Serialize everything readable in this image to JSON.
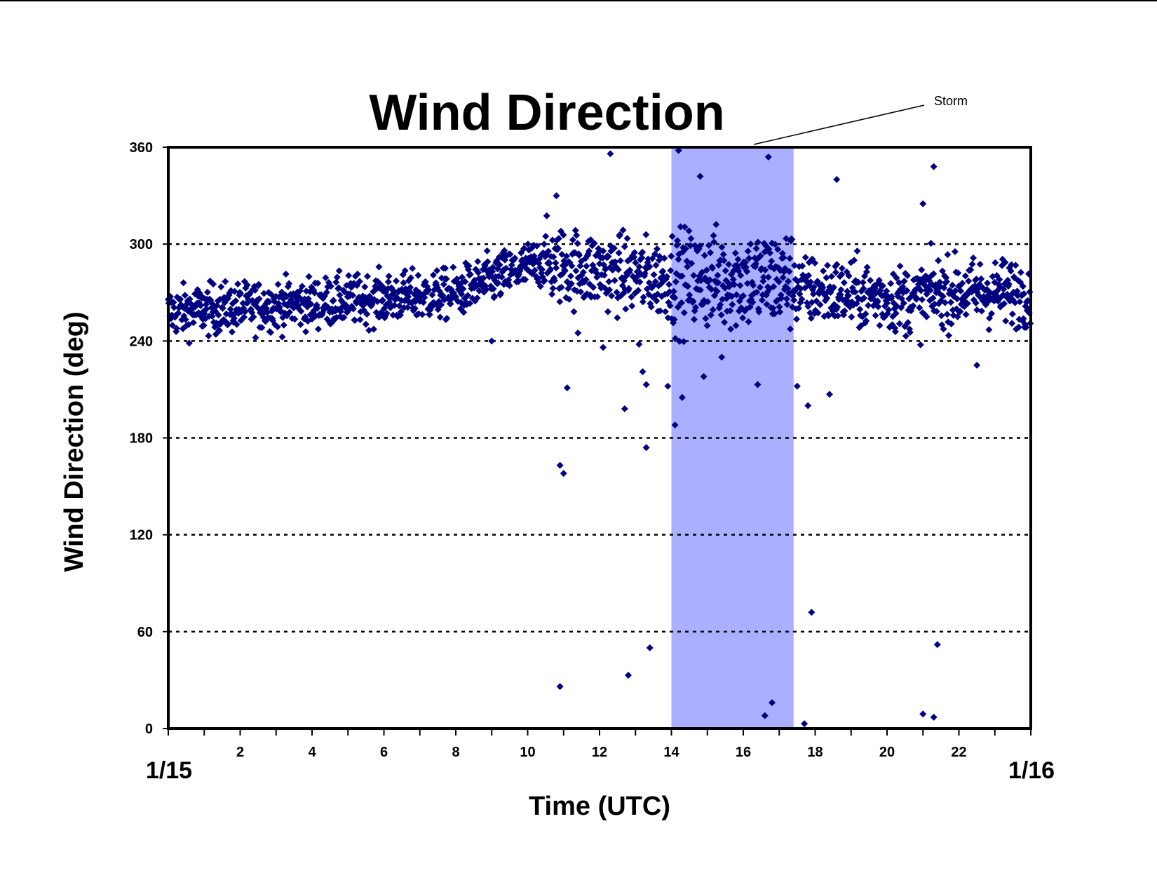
{
  "chart_data": {
    "type": "scatter",
    "title": "Wind Direction",
    "xlabel": "Time (UTC)",
    "ylabel": "Wind Direction (deg)",
    "xlim": [
      0,
      24
    ],
    "ylim": [
      0,
      360
    ],
    "x_ticks": [
      2,
      4,
      6,
      8,
      10,
      12,
      14,
      16,
      18,
      20,
      22
    ],
    "x_tick_labels": [
      "2",
      "4",
      "6",
      "8",
      "10",
      "12",
      "14",
      "16",
      "18",
      "20",
      "22"
    ],
    "x_start_label": "1/15",
    "x_end_label": "1/16",
    "y_ticks": [
      0,
      60,
      120,
      180,
      240,
      300,
      360
    ],
    "y_tick_labels": [
      "0",
      "60",
      "120",
      "180",
      "240",
      "300",
      "360"
    ],
    "grid": "horizontal-dotted",
    "marker_color": "#000080",
    "storm_band": {
      "x_start": 14.0,
      "x_end": 17.4,
      "color": "#aab0ff"
    },
    "annotations": [
      {
        "text": "Storm"
      }
    ],
    "series": [
      {
        "outliers": [
          [
            10.9,
            26
          ],
          [
            10.9,
            163
          ],
          [
            11.0,
            158
          ],
          [
            11.1,
            211
          ],
          [
            10.8,
            330
          ],
          [
            12.3,
            356
          ],
          [
            12.7,
            198
          ],
          [
            12.8,
            33
          ],
          [
            13.2,
            221
          ],
          [
            13.3,
            213
          ],
          [
            13.3,
            174
          ],
          [
            13.4,
            50
          ],
          [
            13.9,
            212
          ],
          [
            14.1,
            188
          ],
          [
            14.2,
            358
          ],
          [
            14.3,
            205
          ],
          [
            14.8,
            342
          ],
          [
            14.9,
            218
          ],
          [
            16.4,
            213
          ],
          [
            16.6,
            8
          ],
          [
            16.7,
            354
          ],
          [
            16.8,
            16
          ],
          [
            17.7,
            3
          ],
          [
            17.8,
            200
          ],
          [
            17.9,
            72
          ],
          [
            18.4,
            207
          ],
          [
            18.6,
            340
          ],
          [
            21.0,
            9
          ],
          [
            21.0,
            325
          ],
          [
            21.3,
            7
          ],
          [
            21.3,
            348
          ],
          [
            21.4,
            52
          ],
          [
            21.1,
            255
          ],
          [
            22.5,
            225
          ],
          [
            12.1,
            236
          ],
          [
            13.1,
            238
          ],
          [
            15.4,
            230
          ],
          [
            11.4,
            245
          ],
          [
            9.0,
            240
          ],
          [
            17.5,
            212
          ]
        ]
      }
    ]
  }
}
